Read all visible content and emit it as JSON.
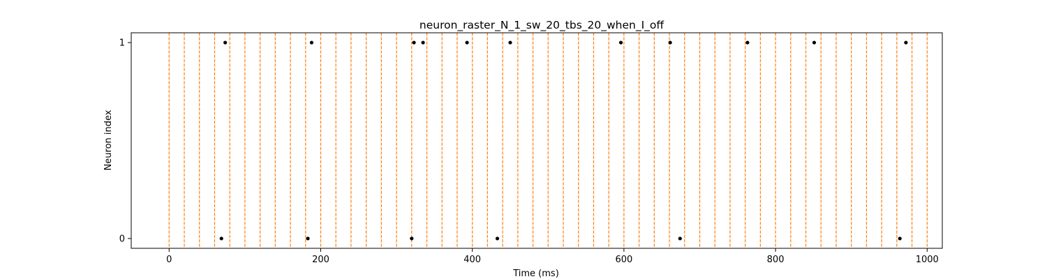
{
  "chart_data": {
    "type": "scatter",
    "title": "neuron_raster_N_1_sw_20_tbs_20_when_I_off",
    "xlabel": "Time (ms)",
    "ylabel": "Neuron index",
    "xlim": [
      -50,
      1020
    ],
    "ylim": [
      -0.05,
      1.05
    ],
    "xticks": [
      0,
      200,
      400,
      600,
      800,
      1000
    ],
    "xtick_labels": [
      "0",
      "200",
      "400",
      "600",
      "800",
      "1000"
    ],
    "yticks": [
      0,
      1
    ],
    "ytick_labels": [
      "0",
      "1"
    ],
    "grid": false,
    "legend": "none",
    "series": [
      {
        "marker_color": "#000000",
        "points": [
          {
            "x": 69,
            "y": 0
          },
          {
            "x": 183,
            "y": 0
          },
          {
            "x": 320,
            "y": 0
          },
          {
            "x": 433,
            "y": 0
          },
          {
            "x": 674,
            "y": 0
          },
          {
            "x": 964,
            "y": 0
          },
          {
            "x": 74,
            "y": 1
          },
          {
            "x": 188,
            "y": 1
          },
          {
            "x": 323,
            "y": 1
          },
          {
            "x": 335,
            "y": 1
          },
          {
            "x": 393,
            "y": 1
          },
          {
            "x": 450,
            "y": 1
          },
          {
            "x": 596,
            "y": 1
          },
          {
            "x": 661,
            "y": 1
          },
          {
            "x": 763,
            "y": 1
          },
          {
            "x": 851,
            "y": 1
          },
          {
            "x": 972,
            "y": 1
          }
        ]
      }
    ],
    "vlines": {
      "color": "#ff7f0e",
      "style": "dashed",
      "start": 0,
      "end": 1000,
      "step": 20
    },
    "colors": {
      "spike": "#000000",
      "window_line": "#ff7f0e",
      "axes": "#000000",
      "background": "#ffffff"
    }
  }
}
